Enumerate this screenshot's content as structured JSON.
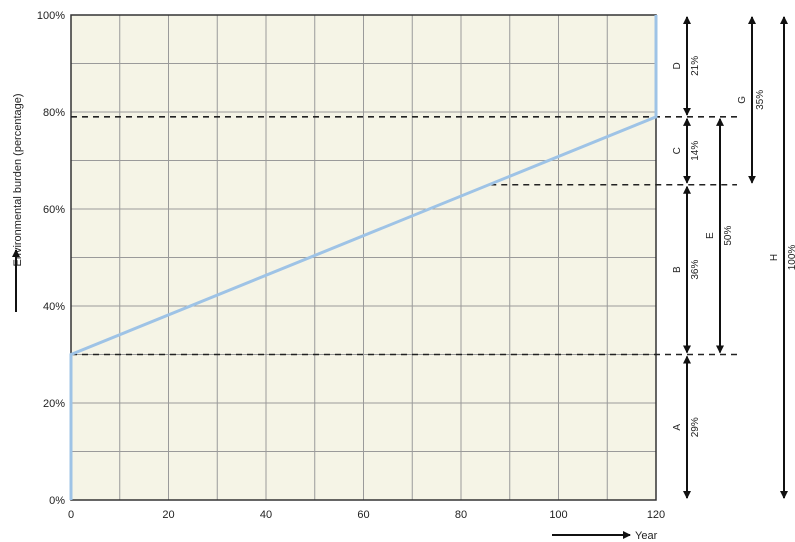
{
  "chart_data": {
    "type": "line",
    "ylabel": "Environmental burden (percentage)",
    "xlabel": "Year",
    "xlim": [
      0,
      120
    ],
    "ylim": [
      0,
      100
    ],
    "x_ticks": [
      0,
      20,
      40,
      60,
      80,
      100,
      120
    ],
    "y_ticks": [
      0,
      20,
      40,
      60,
      80,
      100
    ],
    "y_tick_labels": [
      "0%",
      "20%",
      "40%",
      "60%",
      "80%",
      "100%"
    ],
    "x_tick_labels": [
      "0",
      "20",
      "40",
      "60",
      "80",
      "100",
      "120"
    ],
    "grid": true,
    "series": [
      {
        "points": [
          [
            0,
            0
          ],
          [
            0,
            30
          ],
          [
            120,
            79
          ],
          [
            120,
            100
          ]
        ]
      }
    ],
    "reference_lines": [
      {
        "y": 79,
        "x_start": 0
      },
      {
        "y": 65,
        "x_start": 86
      },
      {
        "y": 30,
        "x_start": 0
      }
    ],
    "segments": [
      {
        "letter": "D",
        "value": "21%",
        "from": 79,
        "to": 100,
        "column": 0
      },
      {
        "letter": "C",
        "value": "14%",
        "from": 65,
        "to": 79,
        "column": 0
      },
      {
        "letter": "B",
        "value": "36%",
        "from": 30,
        "to": 65,
        "column": 0
      },
      {
        "letter": "A",
        "value": "29%",
        "from": 0,
        "to": 30,
        "column": 0
      },
      {
        "letter": "E",
        "value": "50%",
        "from": 30,
        "to": 79,
        "column": 1
      },
      {
        "letter": "G",
        "value": "35%",
        "from": 65,
        "to": 100,
        "column": 2
      },
      {
        "letter": "H",
        "value": "100%",
        "from": 0,
        "to": 100,
        "column": 3
      }
    ],
    "colors": {
      "plot_background": "#f5f4e6",
      "grid": "#9a9a9a",
      "line": "#9ec3e6",
      "frame": "#333333",
      "dashed": "#222222",
      "arrow": "#111111"
    }
  }
}
